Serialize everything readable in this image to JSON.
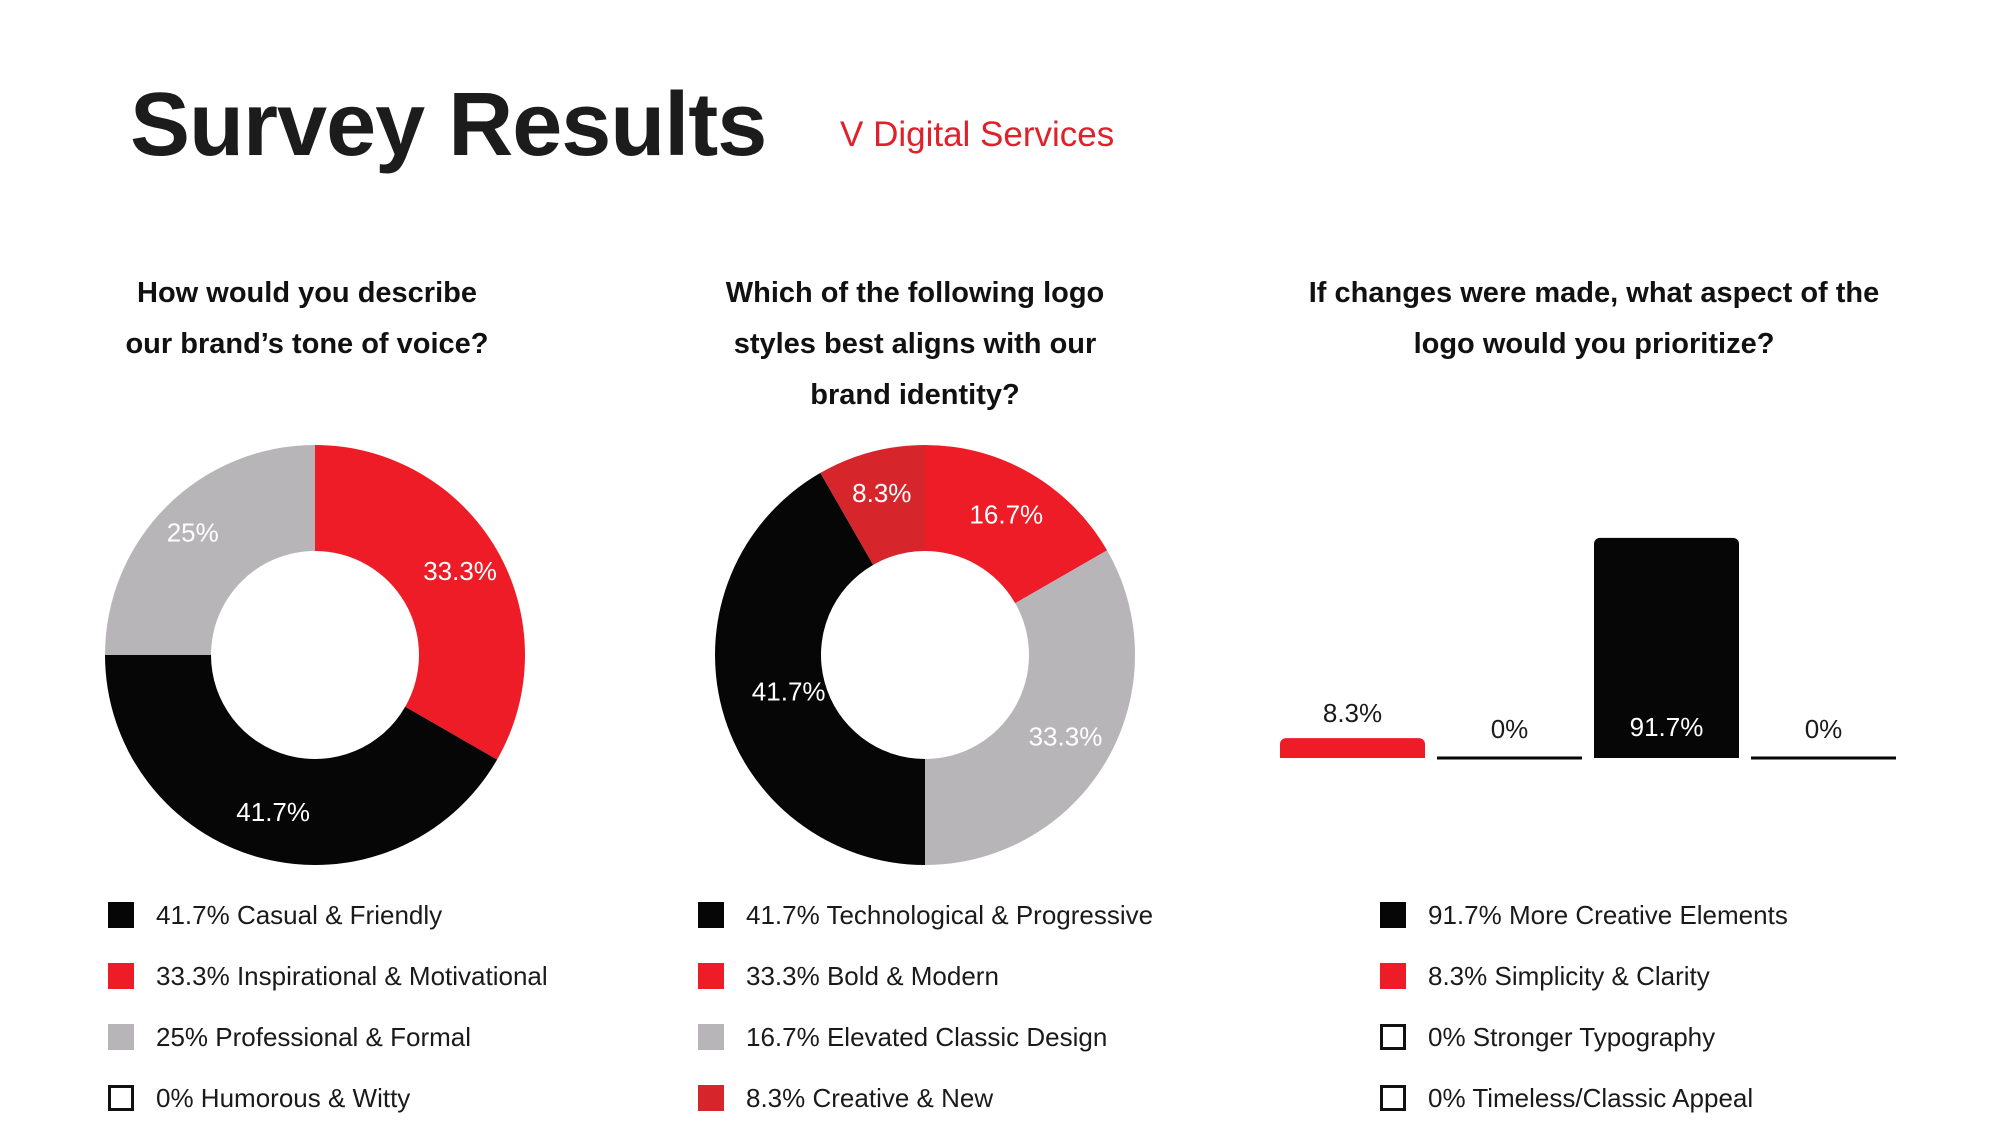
{
  "header": {
    "title": "Survey Results",
    "subtitle": "V Digital Services"
  },
  "colors": {
    "black": "#060606",
    "red": "#ee1c26",
    "gray": "#b8b5b8",
    "dark_red": "#d6262b",
    "white": "#ffffff"
  },
  "chart_data": [
    {
      "type": "pie",
      "variant": "donut",
      "title_lines": [
        "How would you describe",
        "our brand’s tone of voice?"
      ],
      "slices": [
        {
          "label": "Casual & Friendly",
          "value": 41.7,
          "display": "41.7%",
          "color": "#060606",
          "legend": "41.7% Casual & Friendly"
        },
        {
          "label": "Inspirational & Motivational",
          "value": 33.3,
          "display": "33.3%",
          "color": "#ee1c26",
          "legend": "33.3% Inspirational & Motivational"
        },
        {
          "label": "Professional & Formal",
          "value": 25,
          "display": "25%",
          "color": "#b8b5b8",
          "legend": "25% Professional & Formal"
        },
        {
          "label": "Humorous & Witty",
          "value": 0,
          "display": "0%",
          "color": "#ffffff",
          "legend": "0% Humorous & Witty"
        }
      ]
    },
    {
      "type": "pie",
      "variant": "donut",
      "title_lines": [
        "Which of the following logo",
        "styles best aligns with our",
        "brand identity?"
      ],
      "slices": [
        {
          "label": "Technological & Progressive",
          "value": 41.7,
          "display": "41.7%",
          "color": "#060606",
          "legend": "41.7% Technological & Progressive"
        },
        {
          "label": "Bold & Modern",
          "value": 33.3,
          "display": "33.3%",
          "color": "#b8b5b8",
          "legend": "33.3% Bold & Modern"
        },
        {
          "label": "Elevated Classic Design",
          "value": 16.7,
          "display": "16.7%",
          "color": "#ee1c26",
          "legend": "16.7% Elevated Classic Design"
        },
        {
          "label": "Creative & New",
          "value": 8.3,
          "display": "8.3%",
          "color": "#d6262b",
          "legend": "8.3% Creative & New"
        }
      ],
      "legend_colors": [
        "#060606",
        "#ee1c26",
        "#b8b5b8",
        "#d6262b"
      ]
    },
    {
      "type": "bar",
      "title_lines": [
        "If changes were made, what aspect of the",
        "logo would you prioritize?"
      ],
      "categories": [
        "Simplicity & Clarity",
        "Stronger Typography",
        "More Creative Elements",
        "Timeless/Classic Appeal"
      ],
      "values": [
        8.3,
        0,
        91.7,
        0
      ],
      "display": [
        "8.3%",
        "0%",
        "91.7%",
        "0%"
      ],
      "colors": [
        "#ee1c26",
        "#060606",
        "#060606",
        "#060606"
      ],
      "ylim": [
        0,
        100
      ],
      "legend": [
        {
          "text": "91.7% More Creative Elements",
          "color": "#060606",
          "outline": false
        },
        {
          "text": "8.3% Simplicity & Clarity",
          "color": "#ee1c26",
          "outline": false
        },
        {
          "text": "0% Stronger Typography",
          "color": "#ffffff",
          "outline": true
        },
        {
          "text": "0% Timeless/Classic Appeal",
          "color": "#ffffff",
          "outline": true
        }
      ]
    }
  ]
}
